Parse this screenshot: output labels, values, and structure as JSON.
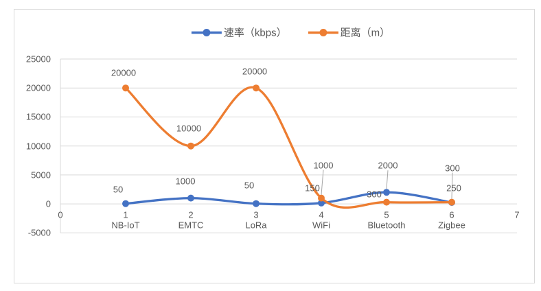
{
  "chart_data": {
    "type": "line",
    "smooth": true,
    "title": "",
    "x": [
      1,
      2,
      3,
      4,
      5,
      6
    ],
    "categories": [
      "NB-IoT",
      "EMTC",
      "LoRa",
      "WiFi",
      "Bluetooth",
      "Zigbee"
    ],
    "series": [
      {
        "key": "rate",
        "name": "速率（kbps）",
        "color": "#4472C4",
        "values": [
          50,
          1000,
          50,
          150,
          2000,
          250
        ]
      },
      {
        "key": "distance",
        "name": "距离（m）",
        "color": "#ED7D31",
        "values": [
          20000,
          10000,
          20000,
          1000,
          300,
          300
        ]
      }
    ],
    "data_labels_shown": true,
    "xlim": [
      0,
      7
    ],
    "ylim": [
      -5000,
      25000
    ],
    "x_ticks": [
      0,
      1,
      2,
      3,
      4,
      5,
      6,
      7
    ],
    "y_ticks": [
      -5000,
      0,
      5000,
      10000,
      15000,
      20000,
      25000
    ],
    "grid": "horizontal",
    "legend_position": "top-center",
    "marker": "circle",
    "style": {
      "background": "#FFFFFF",
      "frame_border_color": "#D9D9D9",
      "grid_color": "#D9D9D9",
      "text_color": "#595959",
      "leader_line_color": "#A6A6A6"
    }
  }
}
